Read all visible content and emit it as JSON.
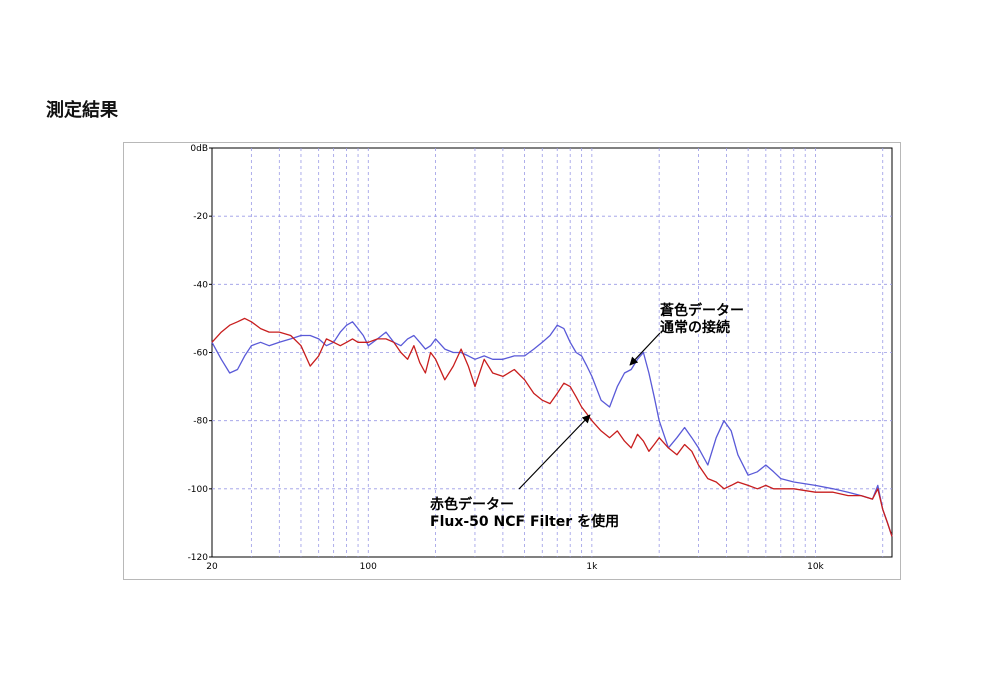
{
  "page": {
    "heading": "測定結果"
  },
  "chart_data": {
    "type": "line",
    "xscale": "log",
    "xlim": [
      20,
      22000
    ],
    "ylim": [
      -120,
      0
    ],
    "y_ticks": [
      {
        "value": 0,
        "label": "0dB"
      },
      {
        "value": -20,
        "label": "-20"
      },
      {
        "value": -40,
        "label": "-40"
      },
      {
        "value": -60,
        "label": "-60"
      },
      {
        "value": -80,
        "label": "-80"
      },
      {
        "value": -100,
        "label": "-100"
      },
      {
        "value": -120,
        "label": "-120"
      }
    ],
    "x_ticks": [
      {
        "value": 20,
        "label": "20"
      },
      {
        "value": 100,
        "label": "100"
      },
      {
        "value": 1000,
        "label": "1k"
      },
      {
        "value": 10000,
        "label": "10k"
      }
    ],
    "grid": true,
    "series": [
      {
        "color": "#5a5ad8",
        "points": [
          [
            20,
            -57
          ],
          [
            22,
            -62
          ],
          [
            24,
            -66
          ],
          [
            26,
            -65
          ],
          [
            28,
            -61
          ],
          [
            30,
            -58
          ],
          [
            33,
            -57
          ],
          [
            36,
            -58
          ],
          [
            40,
            -57
          ],
          [
            45,
            -56
          ],
          [
            50,
            -55
          ],
          [
            55,
            -55
          ],
          [
            60,
            -56
          ],
          [
            65,
            -58
          ],
          [
            70,
            -57
          ],
          [
            75,
            -54
          ],
          [
            80,
            -52
          ],
          [
            85,
            -51
          ],
          [
            90,
            -53
          ],
          [
            95,
            -55
          ],
          [
            100,
            -58
          ],
          [
            110,
            -56
          ],
          [
            120,
            -54
          ],
          [
            130,
            -57
          ],
          [
            140,
            -58
          ],
          [
            150,
            -56
          ],
          [
            160,
            -55
          ],
          [
            170,
            -57
          ],
          [
            180,
            -59
          ],
          [
            190,
            -58
          ],
          [
            200,
            -56
          ],
          [
            220,
            -59
          ],
          [
            240,
            -60
          ],
          [
            260,
            -60
          ],
          [
            280,
            -61
          ],
          [
            300,
            -62
          ],
          [
            330,
            -61
          ],
          [
            360,
            -62
          ],
          [
            400,
            -62
          ],
          [
            450,
            -61
          ],
          [
            500,
            -61
          ],
          [
            550,
            -59
          ],
          [
            600,
            -57
          ],
          [
            650,
            -55
          ],
          [
            700,
            -52
          ],
          [
            750,
            -53
          ],
          [
            800,
            -57
          ],
          [
            850,
            -60
          ],
          [
            900,
            -61
          ],
          [
            950,
            -64
          ],
          [
            1000,
            -67
          ],
          [
            1100,
            -74
          ],
          [
            1200,
            -76
          ],
          [
            1300,
            -70
          ],
          [
            1400,
            -66
          ],
          [
            1500,
            -65
          ],
          [
            1600,
            -62
          ],
          [
            1700,
            -60
          ],
          [
            1800,
            -66
          ],
          [
            1900,
            -73
          ],
          [
            2000,
            -80
          ],
          [
            2200,
            -88
          ],
          [
            2400,
            -85
          ],
          [
            2600,
            -82
          ],
          [
            2800,
            -85
          ],
          [
            3000,
            -88
          ],
          [
            3300,
            -93
          ],
          [
            3600,
            -85
          ],
          [
            3900,
            -80
          ],
          [
            4200,
            -83
          ],
          [
            4500,
            -90
          ],
          [
            5000,
            -96
          ],
          [
            5500,
            -95
          ],
          [
            6000,
            -93
          ],
          [
            6500,
            -95
          ],
          [
            7000,
            -97
          ],
          [
            8000,
            -98
          ],
          [
            10000,
            -99
          ],
          [
            12000,
            -100
          ],
          [
            14000,
            -101
          ],
          [
            16000,
            -102
          ],
          [
            18000,
            -103
          ],
          [
            19000,
            -99
          ],
          [
            20000,
            -106
          ],
          [
            21000,
            -110
          ],
          [
            22000,
            -114
          ]
        ]
      },
      {
        "color": "#c81e1e",
        "points": [
          [
            20,
            -57
          ],
          [
            22,
            -54
          ],
          [
            24,
            -52
          ],
          [
            26,
            -51
          ],
          [
            28,
            -50
          ],
          [
            30,
            -51
          ],
          [
            33,
            -53
          ],
          [
            36,
            -54
          ],
          [
            40,
            -54
          ],
          [
            45,
            -55
          ],
          [
            50,
            -58
          ],
          [
            55,
            -64
          ],
          [
            60,
            -61
          ],
          [
            65,
            -56
          ],
          [
            70,
            -57
          ],
          [
            75,
            -58
          ],
          [
            80,
            -57
          ],
          [
            85,
            -56
          ],
          [
            90,
            -57
          ],
          [
            95,
            -57
          ],
          [
            100,
            -57
          ],
          [
            110,
            -56
          ],
          [
            120,
            -56
          ],
          [
            130,
            -57
          ],
          [
            140,
            -60
          ],
          [
            150,
            -62
          ],
          [
            160,
            -58
          ],
          [
            170,
            -63
          ],
          [
            180,
            -66
          ],
          [
            190,
            -60
          ],
          [
            200,
            -62
          ],
          [
            220,
            -68
          ],
          [
            240,
            -64
          ],
          [
            260,
            -59
          ],
          [
            280,
            -64
          ],
          [
            300,
            -70
          ],
          [
            330,
            -62
          ],
          [
            360,
            -66
          ],
          [
            400,
            -67
          ],
          [
            450,
            -65
          ],
          [
            500,
            -68
          ],
          [
            550,
            -72
          ],
          [
            600,
            -74
          ],
          [
            650,
            -75
          ],
          [
            700,
            -72
          ],
          [
            750,
            -69
          ],
          [
            800,
            -70
          ],
          [
            850,
            -73
          ],
          [
            900,
            -76
          ],
          [
            950,
            -78
          ],
          [
            1000,
            -80
          ],
          [
            1100,
            -83
          ],
          [
            1200,
            -85
          ],
          [
            1300,
            -83
          ],
          [
            1400,
            -86
          ],
          [
            1500,
            -88
          ],
          [
            1600,
            -84
          ],
          [
            1700,
            -86
          ],
          [
            1800,
            -89
          ],
          [
            1900,
            -87
          ],
          [
            2000,
            -85
          ],
          [
            2200,
            -88
          ],
          [
            2400,
            -90
          ],
          [
            2600,
            -87
          ],
          [
            2800,
            -89
          ],
          [
            3000,
            -93
          ],
          [
            3300,
            -97
          ],
          [
            3600,
            -98
          ],
          [
            3900,
            -100
          ],
          [
            4200,
            -99
          ],
          [
            4500,
            -98
          ],
          [
            5000,
            -99
          ],
          [
            5500,
            -100
          ],
          [
            6000,
            -99
          ],
          [
            6500,
            -100
          ],
          [
            7000,
            -100
          ],
          [
            8000,
            -100
          ],
          [
            10000,
            -101
          ],
          [
            12000,
            -101
          ],
          [
            14000,
            -102
          ],
          [
            16000,
            -102
          ],
          [
            18000,
            -103
          ],
          [
            19000,
            -100
          ],
          [
            20000,
            -106
          ],
          [
            21000,
            -110
          ],
          [
            22000,
            -114
          ]
        ]
      }
    ],
    "annotations": [
      {
        "lines": [
          "蒼色データー",
          "通常の接続"
        ]
      },
      {
        "lines": [
          "赤色データー",
          "Flux-50 NCF Filter  を使用"
        ]
      }
    ]
  }
}
